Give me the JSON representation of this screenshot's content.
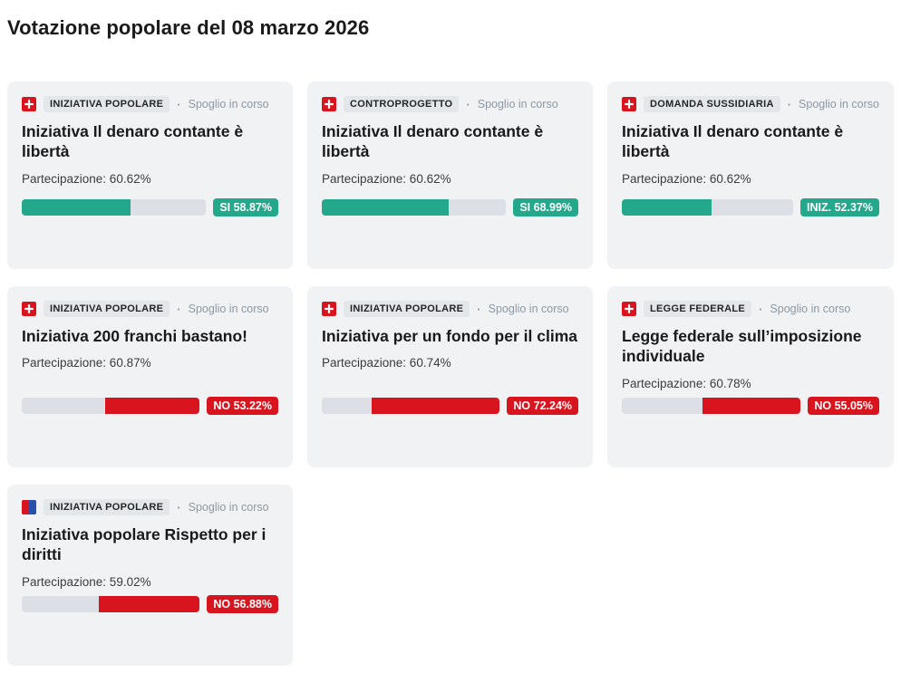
{
  "page": {
    "title": "Votazione popolare del 08 marzo 2026"
  },
  "colors": {
    "yes_green": "#23a88b",
    "no_red": "#d8141f",
    "card_background": "#f0f2f4",
    "category_badge_background": "#e3e7ea",
    "bar_track": "#dce0e6",
    "status_gray": "#8e98a3",
    "flag_red": "#d8141f",
    "flag_blue": "#2b4fad"
  },
  "cards": [
    {
      "flag": "swiss",
      "category": "INIZIATIVA POPOLARE",
      "separator": "·",
      "status": "Spoglio in corso",
      "title": "Iniziativa Il denaro contante è libertà",
      "participation": "Partecipazione: 60.62%",
      "result": {
        "side": "yes",
        "label": "SI 58.87%",
        "percent": 58.87
      }
    },
    {
      "flag": "swiss",
      "category": "CONTROPROGETTO",
      "separator": "·",
      "status": "Spoglio in corso",
      "title": "Iniziativa Il denaro contante è libertà",
      "participation": "Partecipazione: 60.62%",
      "result": {
        "side": "yes",
        "label": "SI 68.99%",
        "percent": 68.99
      }
    },
    {
      "flag": "swiss",
      "category": "DOMANDA SUSSIDIARIA",
      "separator": "·",
      "status": "Spoglio in corso",
      "title": "Iniziativa Il denaro contante è libertà",
      "participation": "Partecipazione: 60.62%",
      "result": {
        "side": "yes",
        "label": "INIZ. 52.37%",
        "percent": 52.37
      }
    },
    {
      "flag": "swiss",
      "category": "INIZIATIVA POPOLARE",
      "separator": "·",
      "status": "Spoglio in corso",
      "title": "Iniziativa 200 franchi bastano!",
      "participation": "Partecipazione: 60.87%",
      "result": {
        "side": "no",
        "label": "NO 53.22%",
        "percent": 53.22
      }
    },
    {
      "flag": "swiss",
      "category": "INIZIATIVA POPOLARE",
      "separator": "·",
      "status": "Spoglio in corso",
      "title": "Iniziativa per un fondo per il clima",
      "participation": "Partecipazione: 60.74%",
      "result": {
        "side": "no",
        "label": "NO 72.24%",
        "percent": 72.24
      }
    },
    {
      "flag": "swiss",
      "category": "LEGGE FEDERALE",
      "separator": "·",
      "status": "Spoglio in corso",
      "title": "Legge federale sull’imposizione individuale",
      "participation": "Partecipazione: 60.78%",
      "result": {
        "side": "no",
        "label": "NO 55.05%",
        "percent": 55.05
      }
    },
    {
      "flag": "ticino",
      "category": "INIZIATIVA POPOLARE",
      "separator": "·",
      "status": "Spoglio in corso",
      "title": "Iniziativa popolare Rispetto per i diritti",
      "participation": "Partecipazione: 59.02%",
      "result": {
        "side": "no",
        "label": "NO 56.88%",
        "percent": 56.88
      }
    }
  ]
}
